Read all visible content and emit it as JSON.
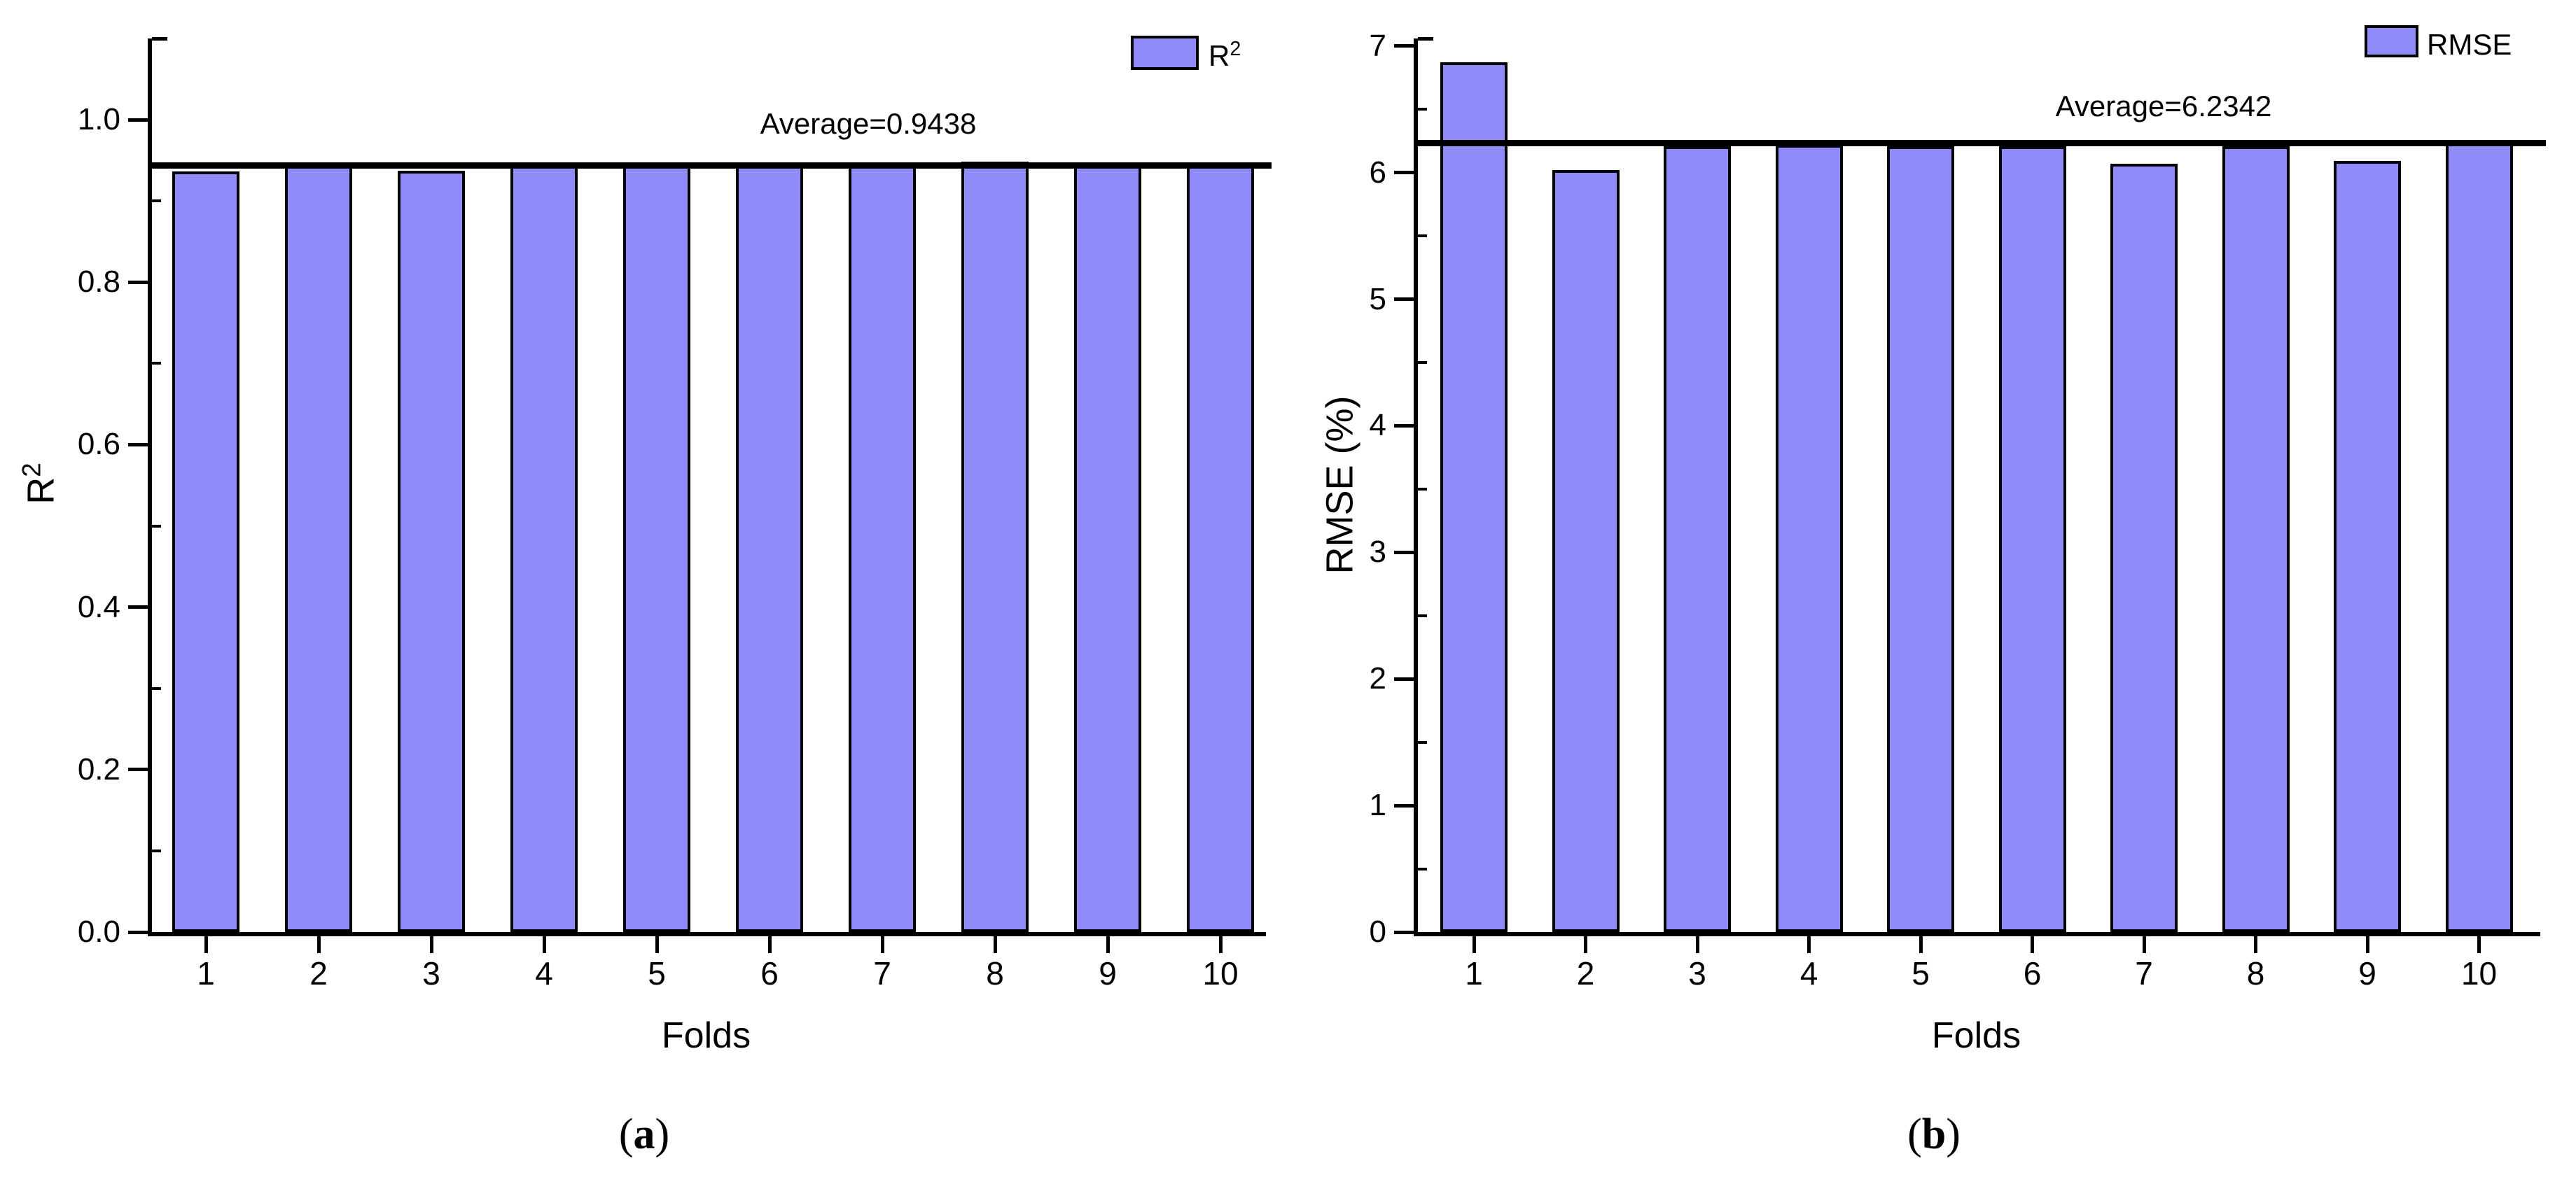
{
  "figure": {
    "background_color": "#ffffff",
    "accent_color": "#8f8cf9"
  },
  "chart_data": [
    {
      "id": "a",
      "type": "bar",
      "caption_open": "(",
      "caption_letter": "a",
      "caption_close": ")",
      "legend_base": "R",
      "legend_sup": "2",
      "legend_position": "top-right",
      "xlabel": "Folds",
      "ylabel_base": "R",
      "ylabel_sup": "2",
      "categories": [
        "1",
        "2",
        "3",
        "4",
        "5",
        "6",
        "7",
        "8",
        "9",
        "10"
      ],
      "values": [
        0.936,
        0.946,
        0.937,
        0.945,
        0.945,
        0.946,
        0.944,
        0.948,
        0.946,
        0.945
      ],
      "average": 0.9438,
      "average_label": "Average=0.9438",
      "ylim": [
        0,
        1.1
      ],
      "y_major_values": [
        0,
        0.2,
        0.4,
        0.6,
        0.8,
        1.0
      ],
      "y_major_labels": [
        "0.0",
        "0.2",
        "0.4",
        "0.6",
        "0.8",
        "1.0"
      ],
      "y_minor_values": [
        0.1,
        0.3,
        0.5,
        0.7,
        0.9
      ],
      "grid": false,
      "bar_fill": "#8f8cf9",
      "bar_border": "#000000"
    },
    {
      "id": "b",
      "type": "bar",
      "caption_open": "(",
      "caption_letter": "b",
      "caption_close": ")",
      "legend_base": "RMSE",
      "legend_sup": "",
      "legend_position": "top-right",
      "xlabel": "Folds",
      "ylabel_base": "RMSE (%)",
      "ylabel_sup": "",
      "categories": [
        "1",
        "2",
        "3",
        "4",
        "5",
        "6",
        "7",
        "8",
        "9",
        "10"
      ],
      "values": [
        6.87,
        6.02,
        6.21,
        6.22,
        6.21,
        6.21,
        6.07,
        6.21,
        6.09,
        6.23
      ],
      "average": 6.2342,
      "average_label": "Average=6.2342",
      "ylim": [
        0,
        7.06
      ],
      "y_major_values": [
        0,
        1,
        2,
        3,
        4,
        5,
        6,
        7
      ],
      "y_major_labels": [
        "0",
        "1",
        "2",
        "3",
        "4",
        "5",
        "6",
        "7"
      ],
      "y_minor_values": [
        0.5,
        1.5,
        2.5,
        3.5,
        4.5,
        5.5,
        6.5
      ],
      "grid": false,
      "bar_fill": "#8f8cf9",
      "bar_border": "#000000"
    }
  ]
}
